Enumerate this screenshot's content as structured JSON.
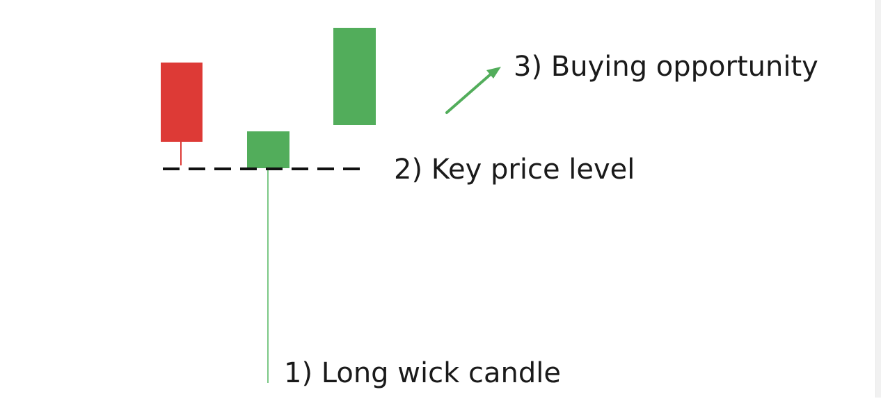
{
  "labels": {
    "long_wick": "1)  Long wick candle",
    "key_level": "2) Key price level",
    "buying": "3) Buying opportunity"
  },
  "colors": {
    "bearish": "#dd3a36",
    "bullish": "#52ad5b",
    "level_line": "#111111",
    "text": "#1a1a1a"
  },
  "candles": [
    {
      "name": "bearish-candle",
      "direction": "down"
    },
    {
      "name": "long-wick-candle",
      "direction": "up"
    },
    {
      "name": "breakout-candle",
      "direction": "up"
    }
  ]
}
